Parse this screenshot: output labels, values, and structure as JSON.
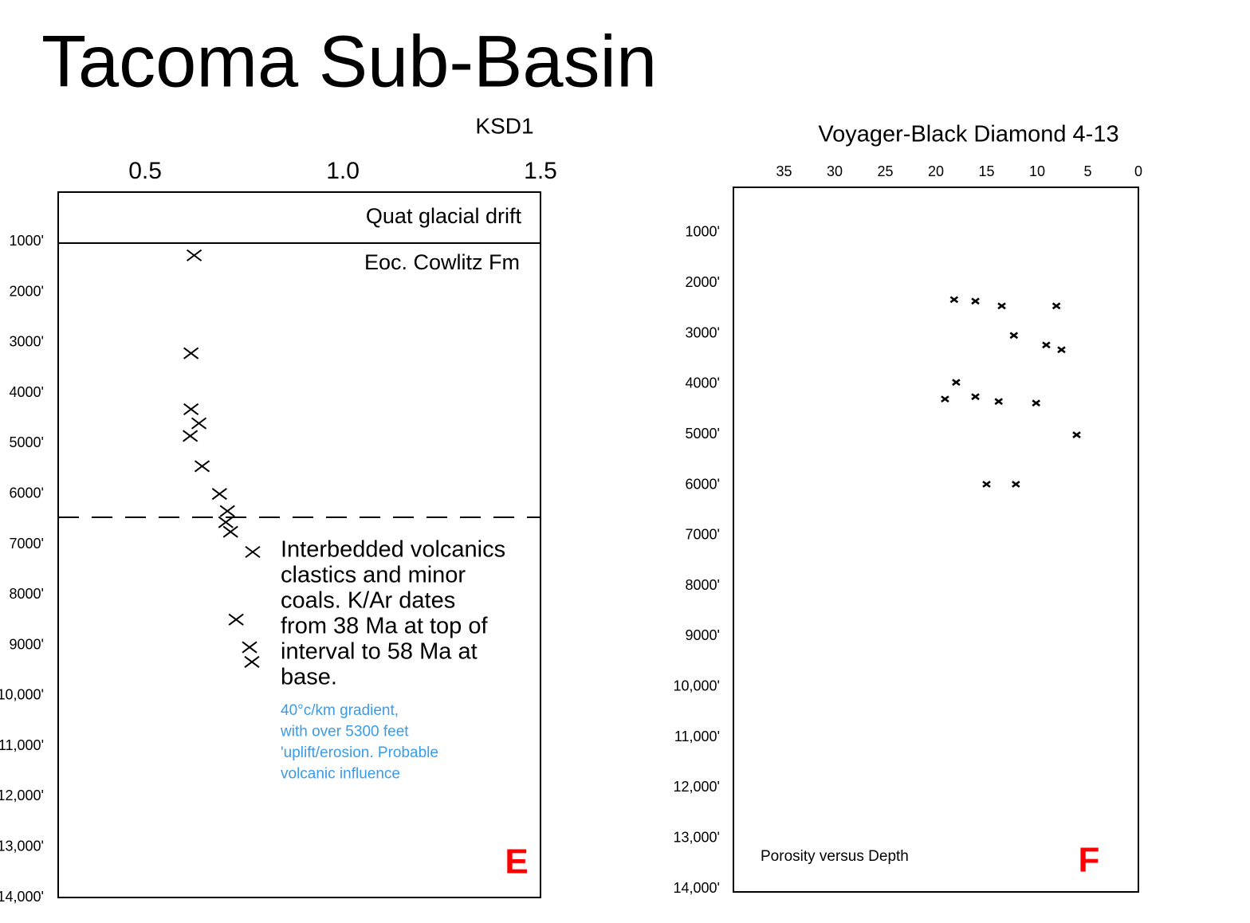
{
  "title": "Tacoma Sub-Basin",
  "chart_data": [
    {
      "type": "scatter",
      "title": "KSD1",
      "xlim": [
        0.28,
        1.5
      ],
      "xticks": [
        0.5,
        {
          "value": 1,
          "label": "1.0"
        },
        1.5
      ],
      "ylim": [
        0,
        14000
      ],
      "yticks": [
        {
          "value": 1000,
          "label": "1000'"
        },
        {
          "value": 2000,
          "label": "2000'"
        },
        {
          "value": 3000,
          "label": "3000'"
        },
        {
          "value": 4000,
          "label": "4000'"
        },
        {
          "value": 5000,
          "label": "5000'"
        },
        {
          "value": 6000,
          "label": "6000'"
        },
        {
          "value": 7000,
          "label": "7000'"
        },
        {
          "value": 8000,
          "label": "8000'"
        },
        {
          "value": 9000,
          "label": "9000'"
        },
        {
          "value": 10000,
          "label": "10,000'"
        },
        {
          "value": 11000,
          "label": "11,000'"
        },
        {
          "value": 12000,
          "label": "12,000'"
        },
        {
          "value": 13000,
          "label": "13,000'"
        },
        {
          "value": 14000,
          "label": "14,000'"
        }
      ],
      "x": [
        0.624,
        0.616,
        0.616,
        0.636,
        0.614,
        0.644,
        0.688,
        0.708,
        0.704,
        0.716,
        0.772,
        0.73,
        0.764,
        0.77
      ],
      "values": [
        1270,
        3210,
        4320,
        4600,
        4850,
        5450,
        6000,
        6340,
        6560,
        6750,
        7150,
        8490,
        9040,
        9330
      ],
      "color": "#000000",
      "horizons": [
        {
          "depth": 1027,
          "style": "solid"
        },
        {
          "depth": 6463,
          "style": "dashed"
        }
      ],
      "annotations": [
        "Quat glacial drift",
        "Eoc. Cowlitz Fm"
      ],
      "note_lines": [
        "Interbedded volcanics",
        "clastics and minor",
        "coals.  K/Ar dates",
        "from 38 Ma at top of",
        "interval to 58 Ma at",
        "base."
      ],
      "comment_lines": [
        "40°c/km gradient,",
        "with over 5300 feet",
        "'uplift/erosion.  Probable",
        "volcanic influence"
      ],
      "comment_color": "#3a9be8",
      "panel_label": "E",
      "panel_label_color": "#ff0000"
    },
    {
      "type": "scatter",
      "title": "Voyager-Black Diamond 4-13",
      "xlim": [
        40,
        0
      ],
      "xticks": [
        35,
        30,
        25,
        20,
        15,
        10,
        5,
        0
      ],
      "ylim": [
        100,
        14000
      ],
      "yticks": [
        {
          "value": 1000,
          "label": "1000'"
        },
        {
          "value": 2000,
          "label": "2000'"
        },
        {
          "value": 3000,
          "label": "3000'"
        },
        {
          "value": 4000,
          "label": "4000'"
        },
        {
          "value": 5000,
          "label": "5000'"
        },
        {
          "value": 6000,
          "label": "6000'"
        },
        {
          "value": 7000,
          "label": "7000'"
        },
        {
          "value": 8000,
          "label": "8000'"
        },
        {
          "value": 9000,
          "label": "9000'"
        },
        {
          "value": 10000,
          "label": "10,000'"
        },
        {
          "value": 11000,
          "label": "11,000'"
        },
        {
          "value": 12000,
          "label": "12,000'"
        },
        {
          "value": 13000,
          "label": "13,000'"
        },
        {
          "value": 14000,
          "label": "14,000'"
        }
      ],
      "x": [
        18.2,
        16.1,
        13.5,
        8.1,
        12.3,
        9.1,
        7.6,
        18.0,
        19.1,
        16.1,
        13.8,
        10.1,
        6.1,
        15.0,
        12.1
      ],
      "values": [
        2325,
        2356,
        2451,
        2451,
        3035,
        3224,
        3319,
        3965,
        4296,
        4249,
        4344,
        4375,
        5006,
        5984,
        5984
      ],
      "color": "#000000",
      "annotations": [
        "Porosity versus Depth"
      ],
      "panel_label": "F",
      "panel_label_color": "#ff0000"
    }
  ]
}
